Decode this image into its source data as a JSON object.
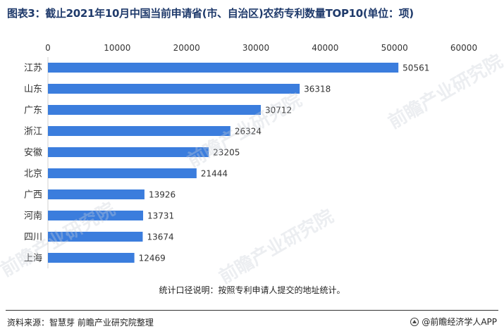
{
  "title": "图表3：截止2021年10月中国当前申请省(市、自治区)农药专利数量TOP10(单位：项)",
  "note": "统计口径说明：按照专利申请人提交的地址统计。",
  "footer": {
    "source": "资料来源：智慧芽 前瞻产业研究院整理",
    "brand": "@前瞻经济学人APP"
  },
  "watermark": "前瞻产业研究院",
  "colors": {
    "bar": "#3b7ddd",
    "title": "#1f3a6b"
  },
  "chart_data": {
    "type": "bar",
    "orientation": "horizontal",
    "title": "",
    "xlabel": "",
    "ylabel": "",
    "xlim": [
      0,
      60000
    ],
    "xticks": [
      0,
      10000,
      20000,
      30000,
      40000,
      50000,
      60000
    ],
    "xaxis_position": "top",
    "grid": false,
    "categories": [
      "江苏",
      "山东",
      "广东",
      "浙江",
      "安徽",
      "北京",
      "广西",
      "河南",
      "四川",
      "上海"
    ],
    "values": [
      50561,
      36318,
      30712,
      26324,
      23205,
      21444,
      13926,
      13731,
      13674,
      12469
    ]
  }
}
